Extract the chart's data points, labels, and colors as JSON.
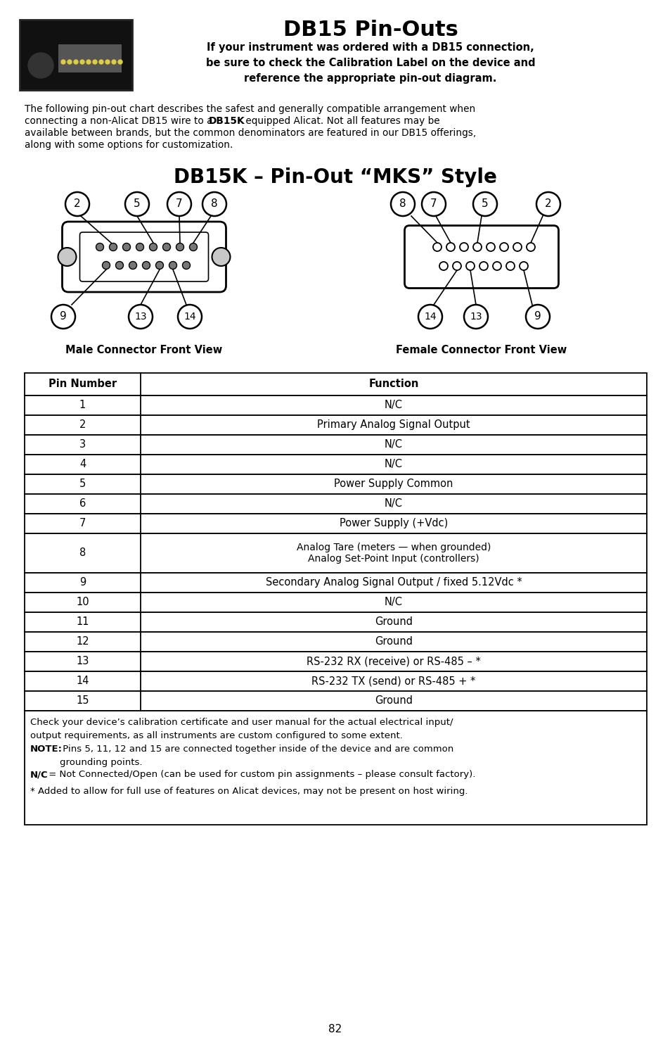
{
  "title": "DB15 Pin-Outs",
  "subtitle_bold": "If your instrument was ordered with a DB15 connection,\nbe sure to check the Calibration Label on the device and\nreference the appropriate pin-out diagram.",
  "intro_text_parts": [
    [
      "normal",
      "The following pin-out chart describes the safest and generally compatible arrangement when\nconnecting a non-Alicat DB15 wire to a "
    ],
    [
      "bold",
      "DB15K"
    ],
    [
      "normal",
      " equipped Alicat. Not all features may be\navailable between brands, but the common denominators are featured in our DB15 offerings,\nalong with some options for customization."
    ]
  ],
  "diagram_title": "DB15K – Pin-Out “MKS” Style",
  "male_label": "Male Connector Front View",
  "female_label": "Female Connector Front View",
  "table_headers": [
    "Pin Number",
    "Function"
  ],
  "table_rows": [
    [
      "1",
      "N/C"
    ],
    [
      "2",
      "Primary Analog Signal Output"
    ],
    [
      "3",
      "N/C"
    ],
    [
      "4",
      "N/C"
    ],
    [
      "5",
      "Power Supply Common"
    ],
    [
      "6",
      "N/C"
    ],
    [
      "7",
      "Power Supply (+Vdc)"
    ],
    [
      "8",
      "Analog Tare (meters — when grounded)\nAnalog Set-Point Input (controllers)"
    ],
    [
      "9",
      "Secondary Analog Signal Output / fixed 5.12Vdc *"
    ],
    [
      "10",
      "N/C"
    ],
    [
      "11",
      "Ground"
    ],
    [
      "12",
      "Ground"
    ],
    [
      "13",
      "RS-232 RX (receive) or RS-485 – *"
    ],
    [
      "14",
      "RS-232 TX (send) or RS-485 + *"
    ],
    [
      "15",
      "Ground"
    ]
  ],
  "footnote1": "Check your device’s calibration certificate and user manual for the actual electrical input/\noutput requirements, as all instruments are custom configured to some extent.",
  "footnote2_bold": "NOTE:",
  "footnote2_rest": " Pins 5, 11, 12 and 15 are connected together inside of the device and are common\ngrounding points.",
  "footnote3_bold": "N/C",
  "footnote3_rest": " = Not Connected/Open (can be used for custom pin assignments – please consult factory).",
  "footnote4": "* Added to allow for full use of features on Alicat devices, may not be present on host wiring.",
  "page_number": "82",
  "bg_color": "#ffffff"
}
